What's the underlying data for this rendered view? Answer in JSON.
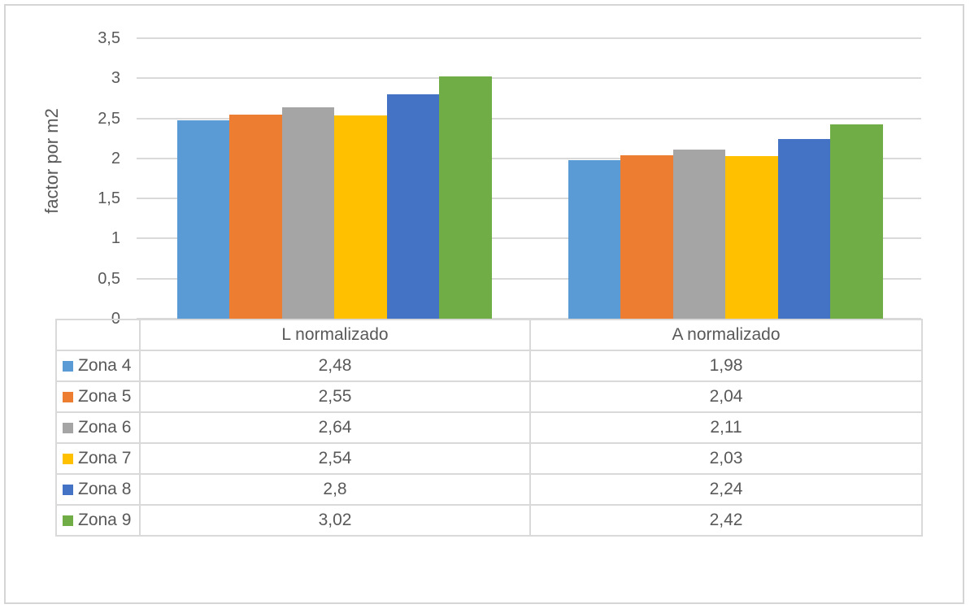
{
  "window": {
    "background": "#ffffff",
    "frame_border_color": "#d5d5d5"
  },
  "chart": {
    "y_axis_title": "factor por m2",
    "yticks": [
      {
        "label": "3,5",
        "value": 3.5
      },
      {
        "label": "3",
        "value": 3
      },
      {
        "label": "2,5",
        "value": 2.5
      },
      {
        "label": "2",
        "value": 2
      },
      {
        "label": "1,5",
        "value": 1.5
      },
      {
        "label": "1",
        "value": 1
      },
      {
        "label": "0,5",
        "value": 0.5
      },
      {
        "label": "0",
        "value": 0
      }
    ],
    "gridline_color": "#d9d9d9",
    "table_border_color": "#d9d9d9",
    "text_color": "#595959"
  },
  "chart_data": {
    "type": "bar",
    "title": "",
    "xlabel": "",
    "ylabel": "factor por m2",
    "ylim": [
      0,
      3.5
    ],
    "ytick_step": 0.5,
    "grid": true,
    "legend_position": "data-table-left-column",
    "categories": [
      "L normalizado",
      "A normalizado"
    ],
    "series": [
      {
        "name": "Zona 4",
        "color": "#5B9BD5",
        "values": [
          2.48,
          1.98
        ],
        "display_values": [
          "2,48",
          "1,98"
        ]
      },
      {
        "name": "Zona 5",
        "color": "#ED7D31",
        "values": [
          2.55,
          2.04
        ],
        "display_values": [
          "2,55",
          "2,04"
        ]
      },
      {
        "name": "Zona 6",
        "color": "#A5A5A5",
        "values": [
          2.64,
          2.11
        ],
        "display_values": [
          "2,64",
          "2,11"
        ]
      },
      {
        "name": "Zona 7",
        "color": "#FFC000",
        "values": [
          2.54,
          2.03
        ],
        "display_values": [
          "2,54",
          "2,03"
        ]
      },
      {
        "name": "Zona 8",
        "color": "#4472C4",
        "values": [
          2.8,
          2.24
        ],
        "display_values": [
          "2,8",
          "2,24"
        ]
      },
      {
        "name": "Zona 9",
        "color": "#70AD47",
        "values": [
          3.02,
          2.42
        ],
        "display_values": [
          "3,02",
          "2,42"
        ]
      }
    ]
  }
}
